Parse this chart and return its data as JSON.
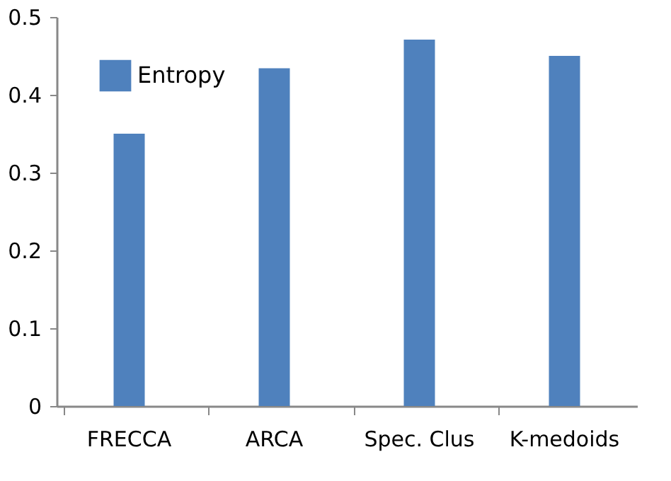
{
  "chart_data": {
    "type": "bar",
    "categories": [
      "FRECCA",
      "ARCA",
      "Spec. Clus",
      "K-medoids"
    ],
    "series": [
      {
        "name": "Entropy",
        "color": "#4f81bd",
        "values": [
          0.35,
          0.434,
          0.471,
          0.45
        ]
      }
    ],
    "ylim": [
      0,
      0.5
    ],
    "yticks": [
      0,
      0.1,
      0.2,
      0.3,
      0.4,
      0.5
    ],
    "grid": false,
    "legend": "top left"
  }
}
